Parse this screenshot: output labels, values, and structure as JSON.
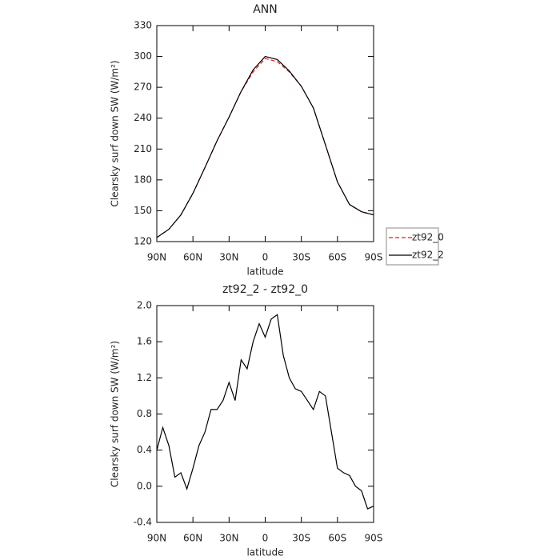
{
  "chart_data": [
    {
      "type": "line",
      "title": "ANN",
      "xlabel": "latitude",
      "ylabel": "Clearsky surf down SW (W/m²)",
      "x": [
        90,
        80,
        70,
        60,
        50,
        40,
        30,
        20,
        10,
        0,
        -10,
        -20,
        -30,
        -40,
        -50,
        -60,
        -70,
        -80,
        -90
      ],
      "series": [
        {
          "name": "zt92_0",
          "color": "#e41a1c",
          "dash": true,
          "values": [
            124,
            132,
            146,
            167,
            192,
            218,
            241,
            266,
            285,
            298,
            295,
            285,
            271,
            250,
            214,
            178,
            156,
            149,
            146
          ]
        },
        {
          "name": "zt92_2",
          "color": "#000000",
          "dash": false,
          "values": [
            124,
            132,
            146,
            167,
            192,
            218,
            241,
            266,
            287,
            300,
            297,
            286,
            271,
            250,
            214,
            178,
            156,
            149,
            146
          ]
        }
      ],
      "xlim": [
        90,
        -90
      ],
      "xticks": [
        {
          "value": 90,
          "label": "90N"
        },
        {
          "value": 60,
          "label": "60N"
        },
        {
          "value": 30,
          "label": "30N"
        },
        0,
        {
          "value": -30,
          "label": "30S"
        },
        {
          "value": -60,
          "label": "60S"
        },
        {
          "value": -90,
          "label": "90S"
        }
      ],
      "ylim": [
        120,
        330
      ],
      "yticks": [
        120,
        150,
        180,
        210,
        240,
        270,
        300,
        330
      ],
      "legend": "right"
    },
    {
      "type": "line",
      "title": "zt92_2 - zt92_0",
      "xlabel": "latitude",
      "ylabel": "Clearsky surf down SW (W/m²)",
      "x": [
        90,
        85,
        80,
        75,
        70,
        65,
        60,
        55,
        50,
        45,
        40,
        35,
        30,
        25,
        20,
        15,
        10,
        5,
        0,
        -5,
        -10,
        -15,
        -20,
        -25,
        -30,
        -35,
        -40,
        -45,
        -50,
        -55,
        -60,
        -65,
        -70,
        -75,
        -80,
        -85,
        -90
      ],
      "series": [
        {
          "color": "#000000",
          "dash": false,
          "values": [
            0.4,
            0.65,
            0.45,
            0.1,
            0.15,
            -0.03,
            0.2,
            0.45,
            0.6,
            0.85,
            0.85,
            0.95,
            1.15,
            0.95,
            1.4,
            1.3,
            1.6,
            1.8,
            1.65,
            1.85,
            1.9,
            1.45,
            1.2,
            1.08,
            1.05,
            0.95,
            0.85,
            1.05,
            1.0,
            0.6,
            0.2,
            0.15,
            0.12,
            0.0,
            -0.05,
            -0.25,
            -0.22
          ]
        }
      ],
      "xlim": [
        90,
        -90
      ],
      "xticks": [
        {
          "value": 90,
          "label": "90N"
        },
        {
          "value": 60,
          "label": "60N"
        },
        {
          "value": 30,
          "label": "30N"
        },
        0,
        {
          "value": -30,
          "label": "30S"
        },
        {
          "value": -60,
          "label": "60S"
        },
        {
          "value": -90,
          "label": "90S"
        }
      ],
      "ylim": [
        -0.4,
        2.0
      ],
      "yticks": [
        -0.4,
        {
          "value": 0,
          "label": "0.0"
        },
        0.4,
        0.8,
        1.2,
        1.6,
        {
          "value": 2.0,
          "label": "2.0"
        }
      ]
    }
  ]
}
